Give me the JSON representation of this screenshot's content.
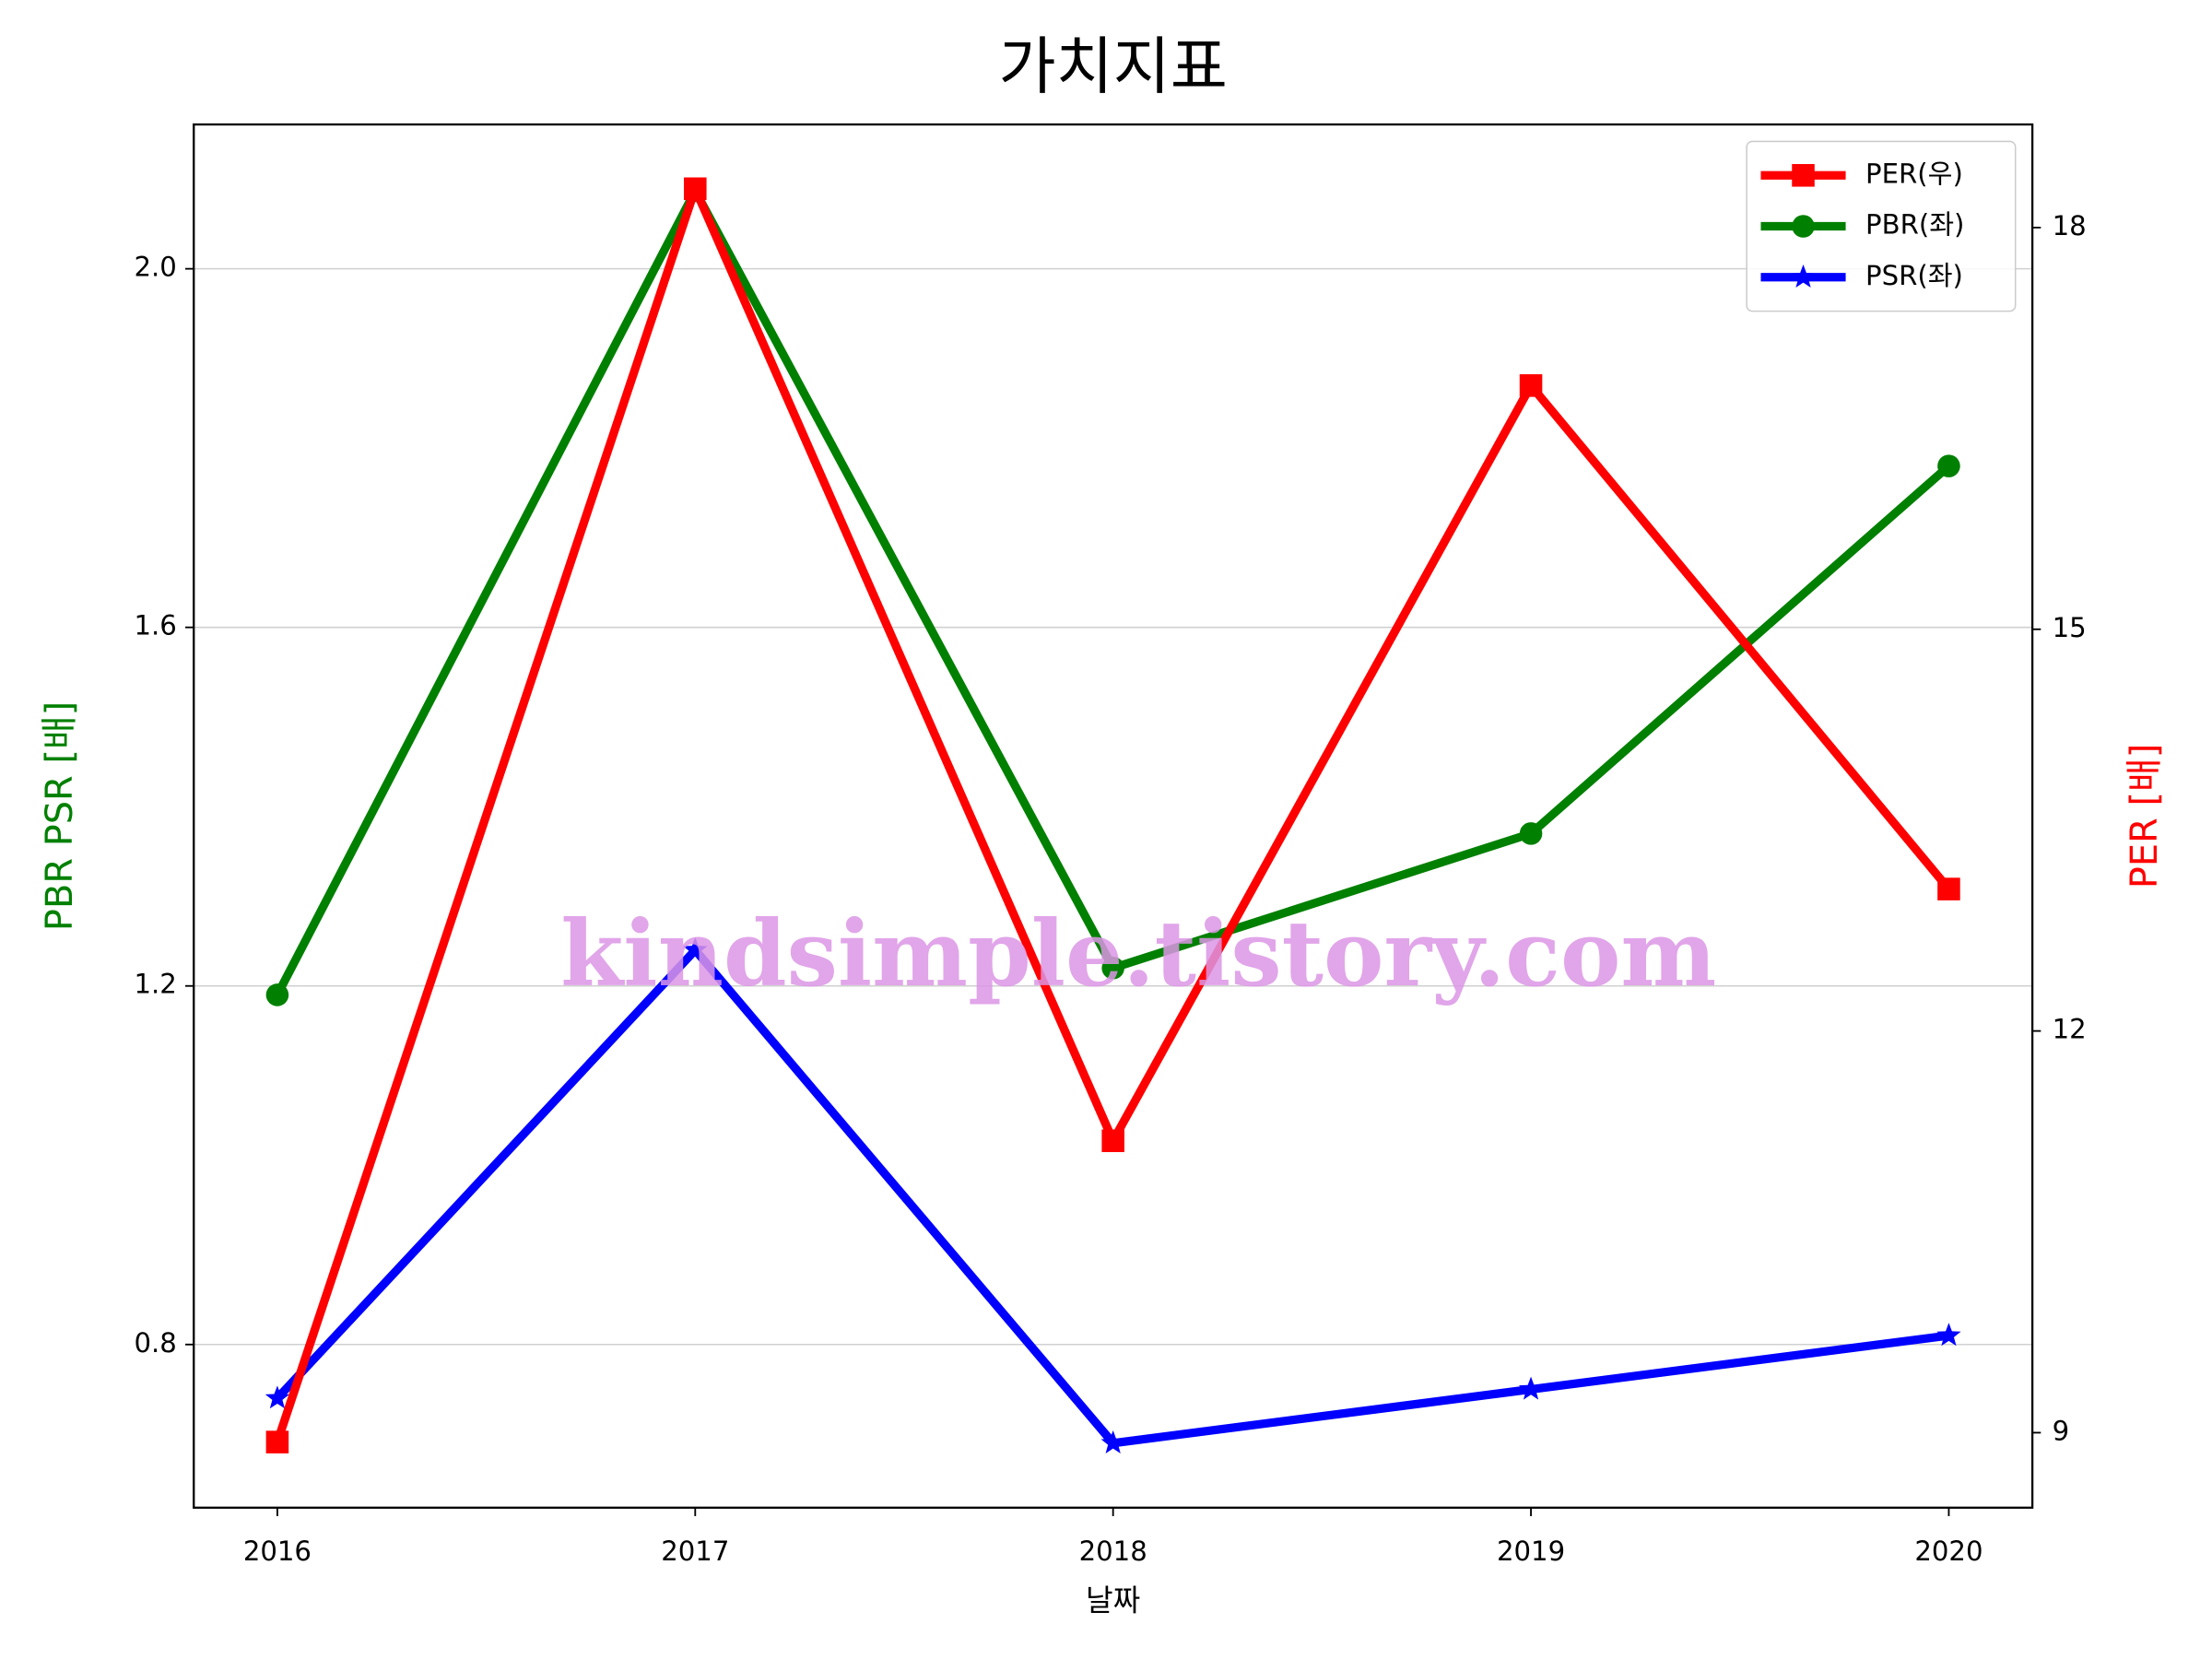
{
  "chart_data": {
    "type": "line",
    "title": "가치지표",
    "x": [
      2016,
      2017,
      2018,
      2019,
      2020
    ],
    "xlim": [
      2015.8,
      2020.2
    ],
    "xticks": [
      2016,
      2017,
      2018,
      2019,
      2020
    ],
    "xlabel": "날짜",
    "ylabel": "PBR PSR [배]",
    "ylabel_color": "#008000",
    "y2label": "PER [배]",
    "y2label_color": "#ff0000",
    "ylim": [
      0.618,
      2.161
    ],
    "yticks": [
      0.8,
      1.2,
      1.6,
      {
        "value": 2,
        "label": "2.0"
      }
    ],
    "y2lim": [
      8.44,
      18.77
    ],
    "y2ticks": [
      9,
      12,
      15,
      18
    ],
    "grid": true,
    "legend": "upper right",
    "watermark": "kindsimple.tistory.com",
    "series": [
      {
        "name": "PER(우)",
        "color": "#ff0000",
        "marker": "square",
        "axis": "y2",
        "values": [
          8.93,
          18.29,
          11.18,
          16.82,
          13.06
        ]
      },
      {
        "name": "PBR(좌)",
        "color": "#008000",
        "marker": "circle",
        "values": [
          1.19,
          2.087,
          1.22,
          1.37,
          1.78
        ]
      },
      {
        "name": "PSR(좌)",
        "color": "#0000ff",
        "marker": "star",
        "values": [
          0.74,
          1.24,
          0.69,
          0.75,
          0.81
        ]
      }
    ]
  }
}
